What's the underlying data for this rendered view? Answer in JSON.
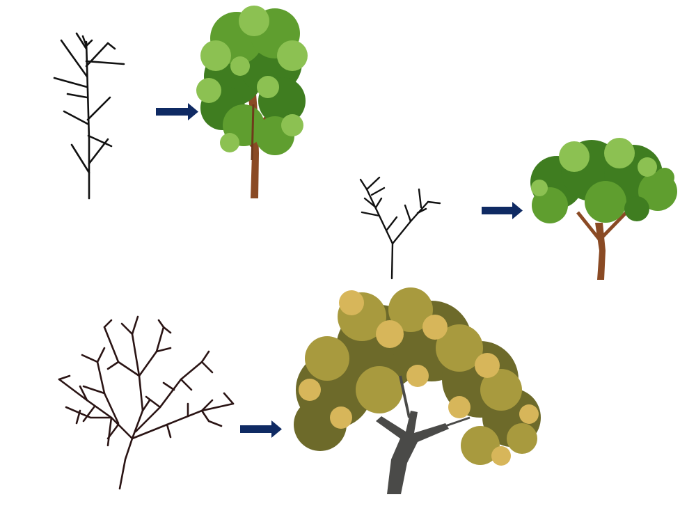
{
  "colors": {
    "background": "#ffffff",
    "arrow": "#0f2a63",
    "sketch_stroke": "#111111",
    "sketch_stroke_dark": "#2a1414",
    "green_trunk": "#8a4a24",
    "green_foliage_dark": "#3f7d20",
    "green_foliage_mid": "#5f9e2f",
    "green_foliage_light": "#8cc152",
    "autumn_trunk": "#4a4a48",
    "autumn_foliage_dark": "#6d6a2a",
    "autumn_foliage_mid": "#a89a3e",
    "autumn_foliage_light": "#d7b65a"
  },
  "diagram": {
    "rows": [
      {
        "sketch": "branch-sketch",
        "arrow": "right-arrow-icon",
        "result": "tall-green-tree"
      },
      {
        "sketch": "branch-sketch",
        "arrow": "right-arrow-icon",
        "result": "round-green-tree"
      },
      {
        "sketch": "branch-sketch",
        "arrow": "right-arrow-icon",
        "result": "wide-autumn-tree"
      }
    ]
  }
}
